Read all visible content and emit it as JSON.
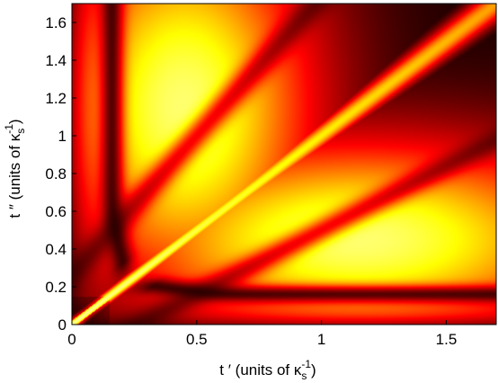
{
  "chart_data": {
    "type": "heatmap",
    "title": "",
    "xlabel": {
      "prefix": "t ′ (units of ",
      "symbol": "κ",
      "subscript": "s",
      "superscript": "-1",
      "suffix": ")"
    },
    "ylabel": {
      "prefix": "t ″ (units of ",
      "symbol": "κ",
      "subscript": "s",
      "superscript": "-1",
      "suffix": ")"
    },
    "xlim": [
      0,
      1.7
    ],
    "ylim": [
      0,
      1.7
    ],
    "x_ticks": [
      {
        "value": 0,
        "label": "0"
      },
      {
        "value": 0.5,
        "label": "0.5"
      },
      {
        "value": 1,
        "label": "1"
      },
      {
        "value": 1.5,
        "label": "1.5"
      }
    ],
    "y_ticks": [
      {
        "value": 0,
        "label": "0"
      },
      {
        "value": 0.2,
        "label": "0.2"
      },
      {
        "value": 0.4,
        "label": "0.4"
      },
      {
        "value": 0.6,
        "label": "0.6"
      },
      {
        "value": 0.8,
        "label": "0.8"
      },
      {
        "value": 1,
        "label": "1"
      },
      {
        "value": 1.2,
        "label": "1.2"
      },
      {
        "value": 1.4,
        "label": "1.4"
      },
      {
        "value": 1.6,
        "label": "1.6"
      }
    ],
    "colormap": "hot",
    "colors": {
      "low": "#000000",
      "mid": "#e00000",
      "high": "#ffff80"
    },
    "features": {
      "diagonal_ridge": "bright yellow-white band along t′ = t″, brightest near origin",
      "dark_valleys": "dark lines near t′ ≈ 0.2 and t″ ≈ 0.15, bending towards the diagonal",
      "lobes": "broad red maxima centred near (0.45, 1.15) and (1.2, 0.45)"
    },
    "grid": false,
    "legend": "none"
  }
}
